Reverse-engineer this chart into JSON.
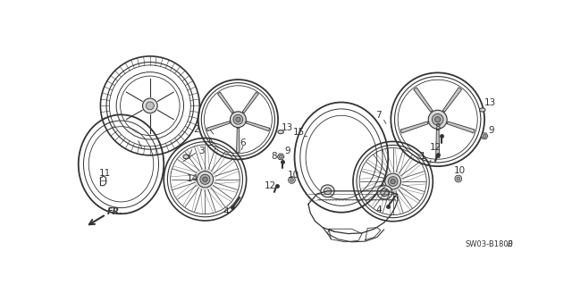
{
  "bg_color": "#ffffff",
  "line_color": "#333333",
  "fig_width": 6.4,
  "fig_height": 3.19,
  "dpi": 100,
  "diagram_code": "SW03-B1800",
  "diagram_suffix": "B"
}
